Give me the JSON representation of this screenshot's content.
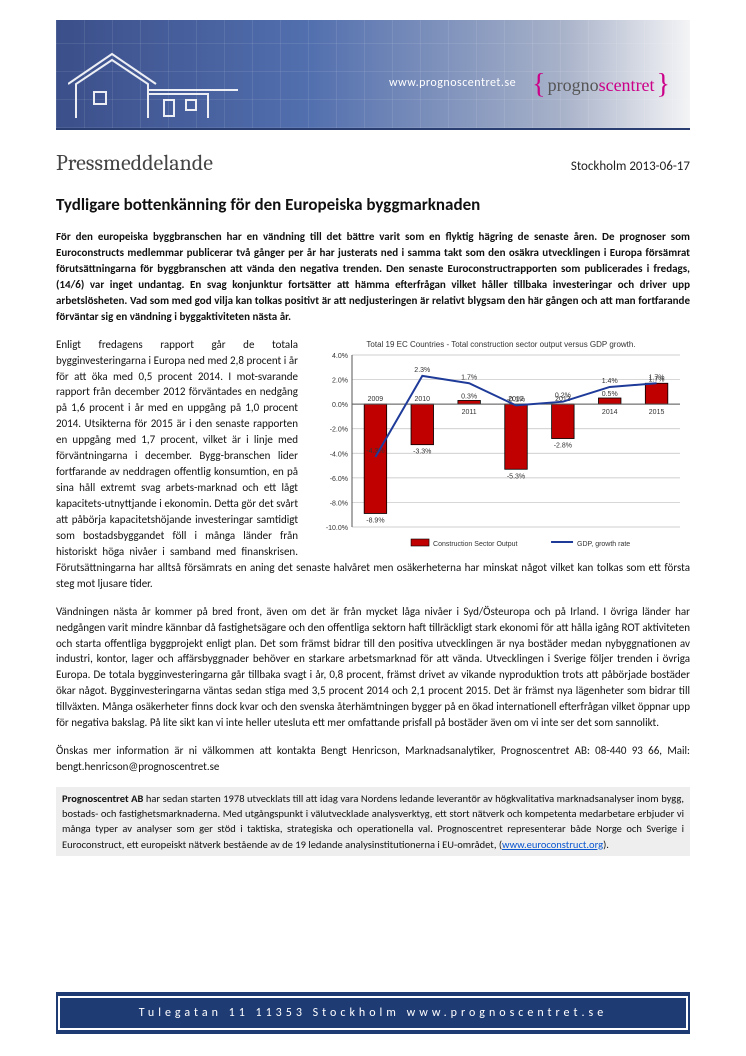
{
  "banner": {
    "url": "www.prognoscentret.se",
    "logo_prefix": "progno",
    "logo_suffix": "scentret"
  },
  "meta": {
    "doctype": "Pressmeddelande",
    "dateline": "Stockholm 2013-06-17"
  },
  "headline": "Tydligare bottenkänning för den Europeiska byggmarknaden",
  "lead": "För den europeiska byggbranschen har en vändning till det bättre varit som en flyktig hägring de senaste åren. De prognoser som Euroconstructs medlemmar publicerar två gånger per år har justerats ned i samma takt som den osäkra utvecklingen i Europa försämrat förutsättningarna för byggbranschen att vända den negativa trenden. Den senaste Euroconstructrapporten som publicerades i fredags, (14/6) var inget undantag. En svag konjunktur fortsätter att hämma efterfrågan vilket håller tillbaka investeringar och driver upp arbetslösheten. Vad som med god vilja kan tolkas positivt är att nedjusteringen är relativt blygsam den här gången och att man fortfarande förväntar sig en vändning i byggaktiviteten nästa år.",
  "para1": "Enligt fredagens rapport går de totala bygginvesteringarna i Europa ned med 2,8 procent i år för att öka med 0,5 procent 2014. I mot-svarande rapport från december 2012 förväntades en nedgång på 1,6 procent i år med en uppgång på 1,0 procent 2014. Utsikterna för 2015 är i den senaste rapporten en uppgång med 1,7 procent, vilket är i linje med förväntningarna i december. Bygg-branschen lider fortfarande av neddragen offentlig konsumtion, en på sina håll extremt svag arbets-marknad och ett lågt kapacitets-utnyttjande i ekonomin. Detta gör det svårt att påbörja kapacitetshöjande investeringar samtidigt som bostadsbyggandet föll i många länder från historiskt höga nivåer i samband med finanskrisen. Förutsättningarna har alltså försämrats en aning det senaste halvåret men osäkerheterna har minskat något vilket kan tolkas som ett första steg mot ljusare tider.",
  "para2": "Vändningen nästa år kommer på bred front, även om det är från mycket låga nivåer i Syd/Östeuropa och på Irland. I övriga länder har nedgången varit mindre kännbar då fastighetsägare och den offentliga sektorn haft tillräckligt stark ekonomi för att hålla igång ROT aktiviteten och starta offentliga byggprojekt enligt plan. Det som främst bidrar till den positiva utvecklingen är nya bostäder medan nybyggnationen av industri, kontor, lager och affärsbyggnader behöver en starkare arbetsmarknad för att vända. Utvecklingen i Sverige följer trenden i övriga Europa. De totala bygginvesteringarna går tillbaka svagt i år, 0,8 procent, främst drivet av vikande nyproduktion trots att påbörjade bostäder ökar något. Bygginvesteringarna väntas sedan stiga med 3,5 procent 2014 och 2,1 procent 2015. Det är främst nya lägenheter som bidrar till tillväxten. Många osäkerheter finns dock kvar och den svenska återhämtningen bygger på en ökad internationell efterfrågan vilket öppnar upp för negativa bakslag. På lite sikt kan vi inte heller utesluta ett mer omfattande prisfall på bostäder även om vi inte ser det som sannolikt.",
  "para3": "Önskas mer information är ni välkommen att kontakta Bengt Henricson, Marknadsanalytiker, Prognoscentret AB: 08-440 93 66, Mail: bengt.henricson@prognoscentret.se",
  "about": {
    "name": "Prognoscentret AB",
    "text": " har sedan starten 1978 utvecklats till att idag vara Nordens ledande leverantör av högkvalitativa marknadsanalyser inom bygg, bostads- och fastighetsmarknaderna. Med utgångspunkt i välutvecklade analysverktyg, ett stort nätverk och kompetenta medarbetare erbjuder vi många typer av analyser som ger stöd i taktiska, strategiska och operationella val. Prognoscentret representerar både Norge och Sverige i Euroconstruct, ett europeiskt nätverk bestående av de 19 ledande analysinstitutionerna i EU-området, (",
    "link_text": "www.euroconstruct.org",
    "link_after": ")."
  },
  "footer": "Tulegatan 11 11353 Stockholm www.prognoscentret.se",
  "chart": {
    "title": "Total 19 EC Countries - Total construction sector output versus GDP growth.",
    "legend": {
      "bar": "Construction Sector Output",
      "line": "GDP, growth rate"
    },
    "categories": [
      "2009",
      "2010",
      "2011",
      "2012",
      "2013",
      "2014",
      "2015"
    ],
    "bar_values": [
      -8.9,
      -3.3,
      0.3,
      -5.3,
      -2.8,
      0.5,
      1.7
    ],
    "line_values": [
      -4.3,
      2.3,
      1.7,
      -0.1,
      0.2,
      1.4,
      1.7
    ],
    "ylim": [
      -10,
      4
    ],
    "ytick_step": 2,
    "bar_color": "#c00000",
    "bar_stroke": "#000000",
    "line_color": "#1f3b99",
    "grid_color": "#bfbfbf",
    "background_color": "#ffffff",
    "title_fontsize": 8,
    "axis_fontsize": 7,
    "label_fontsize": 7
  }
}
